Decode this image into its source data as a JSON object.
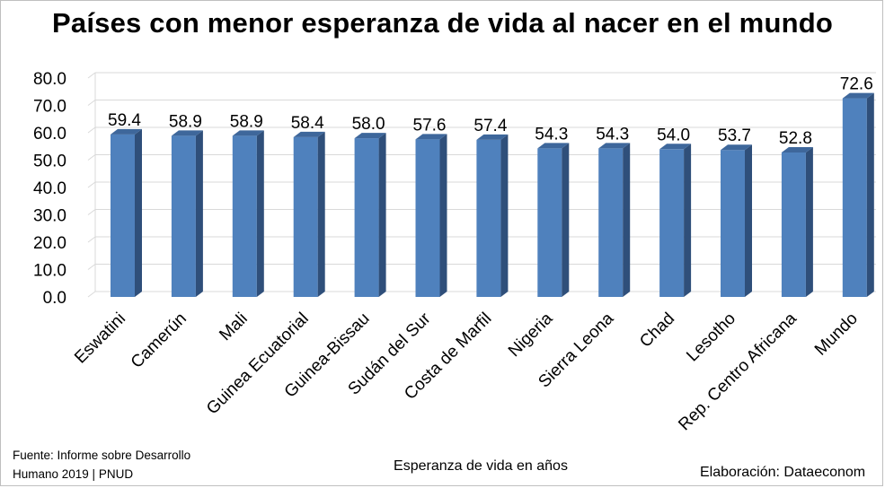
{
  "chart_data": {
    "type": "bar",
    "title": "Países con menor esperanza de vida al nacer en el mundo",
    "xlabel": "Esperanza de vida en años",
    "ylabel": "",
    "ylim": [
      0,
      80
    ],
    "yticks": [
      "0.0",
      "10.0",
      "20.0",
      "30.0",
      "40.0",
      "50.0",
      "60.0",
      "70.0",
      "80.0"
    ],
    "grid": true,
    "categories": [
      "Eswatini",
      "Camerún",
      "Mali",
      "Guinea Ecuatorial",
      "Guinea-Bissau",
      "Sudán del Sur",
      "Costa de Marfil",
      "Nigeria",
      "Sierra Leona",
      "Chad",
      "Lesotho",
      "Rep. Centro Africana",
      "Mundo"
    ],
    "values": [
      59.4,
      58.9,
      58.9,
      58.4,
      58.0,
      57.6,
      57.4,
      54.3,
      54.3,
      54.0,
      53.7,
      52.8,
      72.6
    ],
    "value_labels": [
      "59.4",
      "58.9",
      "58.9",
      "58.4",
      "58.0",
      "57.6",
      "57.4",
      "54.3",
      "54.3",
      "54.0",
      "53.7",
      "52.8",
      "72.6"
    ],
    "colors": {
      "bar_front": "#4f81bd",
      "bar_side": "#2f4f7a",
      "bar_top": "#3e679b",
      "grid": "#d9d9d9"
    }
  },
  "footer": {
    "source_line1": "Fuente: Informe sobre Desarrollo",
    "source_line2": "Humano 2019 | PNUD",
    "credit": "Elaboración: Dataeconom"
  }
}
